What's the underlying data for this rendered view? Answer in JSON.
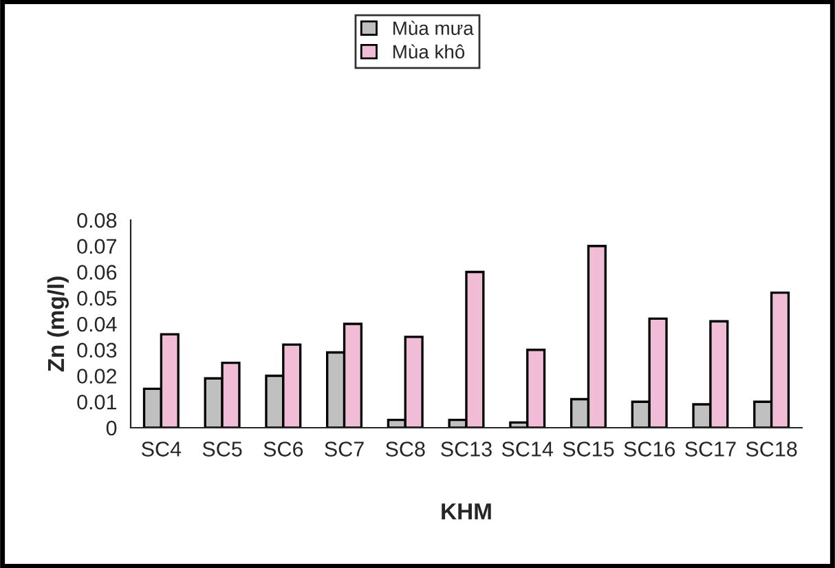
{
  "chart_data": {
    "type": "bar",
    "xlabel": "KHM",
    "ylabel": "Zn (mg/l)",
    "categories": [
      "SC4",
      "SC5",
      "SC6",
      "SC7",
      "SC8",
      "SC13",
      "SC14",
      "SC15",
      "SC16",
      "SC17",
      "SC18"
    ],
    "series": [
      {
        "name": "Mùa mưa",
        "color": "#c0c0c0",
        "values": [
          0.015,
          0.019,
          0.02,
          0.029,
          0.003,
          0.003,
          0.002,
          0.011,
          0.01,
          0.009,
          0.01
        ]
      },
      {
        "name": "Mùa khô",
        "color": "#f0bcd6",
        "values": [
          0.036,
          0.025,
          0.032,
          0.04,
          0.035,
          0.06,
          0.03,
          0.07,
          0.042,
          0.041,
          0.052
        ]
      }
    ],
    "ylim": [
      0,
      0.08
    ],
    "yticks": [
      0,
      0.01,
      0.02,
      0.03,
      0.04,
      0.05,
      0.06,
      0.07,
      0.08
    ],
    "grid": false,
    "legend": "top"
  }
}
